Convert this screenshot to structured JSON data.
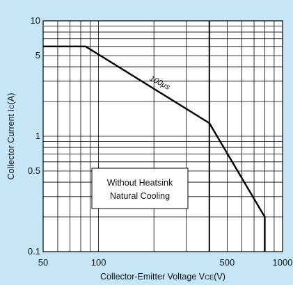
{
  "chart_data": {
    "type": "line",
    "xscale": "log",
    "yscale": "log",
    "xlim": [
      50,
      1000
    ],
    "ylim": [
      0.1,
      10
    ],
    "grid": true,
    "xlabel": "Collector-Emitter Voltage V",
    "xlabel_sub": "CE",
    "xlabel_unit": "(V)",
    "ylabel": "Collector Current I",
    "ylabel_sub": "C",
    "ylabel_unit": "(A)",
    "x_ticks": [
      {
        "value": 50,
        "label": "50"
      },
      {
        "value": 100,
        "label": "100"
      },
      {
        "value": 500,
        "label": "500"
      },
      {
        "value": 1000,
        "label": "1000"
      }
    ],
    "y_ticks": [
      {
        "value": 0.1,
        "label": "0.1"
      },
      {
        "value": 0.5,
        "label": "0.5"
      },
      {
        "value": 1,
        "label": "1"
      },
      {
        "value": 5,
        "label": "5"
      },
      {
        "value": 10,
        "label": "10"
      }
    ],
    "series": [
      {
        "name": "100μs",
        "points": [
          [
            50,
            6
          ],
          [
            85,
            6
          ],
          [
            400,
            1.3
          ],
          [
            800,
            0.2
          ],
          [
            800,
            0.1
          ]
        ]
      }
    ],
    "vertical_line": 400,
    "annotations": {
      "curve_label": "100μs",
      "box_line1": "Without Heatsink",
      "box_line2": "Natural Cooling"
    },
    "colors": {
      "background": "#c6e6f5",
      "plot_background": "#ffffff",
      "line": "#000000"
    }
  }
}
